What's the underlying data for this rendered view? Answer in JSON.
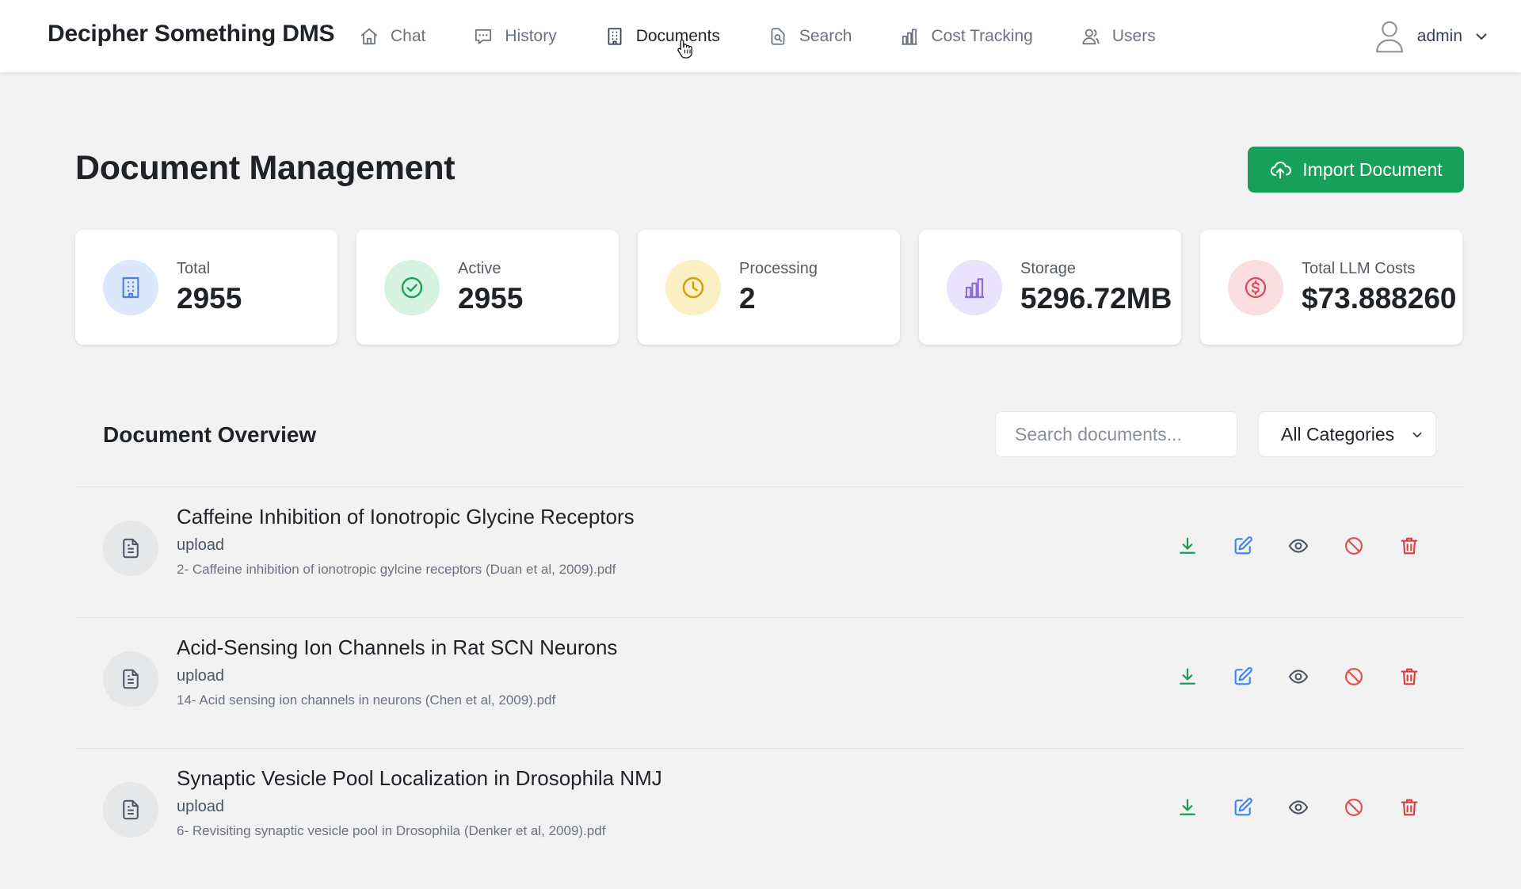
{
  "app": {
    "brand": "Decipher Something DMS"
  },
  "nav": {
    "items": [
      {
        "label": "Chat",
        "icon": "home-icon"
      },
      {
        "label": "History",
        "icon": "chat-bubble-icon"
      },
      {
        "label": "Documents",
        "icon": "building-icon",
        "active": true
      },
      {
        "label": "Search",
        "icon": "search-document-icon"
      },
      {
        "label": "Cost Tracking",
        "icon": "bar-chart-icon"
      },
      {
        "label": "Users",
        "icon": "users-icon"
      }
    ],
    "user": {
      "name": "admin"
    }
  },
  "page": {
    "title": "Document Management",
    "import_label": "Import Document"
  },
  "stats": [
    {
      "label": "Total",
      "value": "2955",
      "icon": "building-icon",
      "bg": "#dbe7fb",
      "fg": "#4f7fd6"
    },
    {
      "label": "Active",
      "value": "2955",
      "icon": "check-circle-icon",
      "bg": "#d6f3e2",
      "fg": "#22a05b"
    },
    {
      "label": "Processing",
      "value": "2",
      "icon": "clock-icon",
      "bg": "#fbefc4",
      "fg": "#d69a12"
    },
    {
      "label": "Storage",
      "value": "5296.72MB",
      "icon": "bar-chart-icon",
      "bg": "#e9e3fb",
      "fg": "#8c6cdb"
    },
    {
      "label": "Total LLM Costs",
      "value": "$73.888260",
      "icon": "dollar-circle-icon",
      "bg": "#fbdfe0",
      "fg": "#dc4a55"
    }
  ],
  "overview": {
    "title": "Document Overview",
    "search_placeholder": "Search documents...",
    "category_selected": "All Categories"
  },
  "documents": [
    {
      "title": "Caffeine Inhibition of Ionotropic Glycine Receptors",
      "source": "upload",
      "filename": "2- Caffeine inhibition of ionotropic gylcine receptors (Duan et al, 2009).pdf"
    },
    {
      "title": "Acid-Sensing Ion Channels in Rat SCN Neurons",
      "source": "upload",
      "filename": "14- Acid sensing ion channels in neurons (Chen et al, 2009).pdf"
    },
    {
      "title": "Synaptic Vesicle Pool Localization in Drosophila NMJ",
      "source": "upload",
      "filename": "6- Revisiting synaptic vesicle pool in Drosophila (Denker et al, 2009).pdf"
    }
  ],
  "colors": {
    "primary_green": "#16a05a",
    "download": "#1f9a55",
    "edit": "#3b82f6",
    "view": "#4b5563",
    "disable": "#e05252",
    "delete": "#dc3b3b"
  }
}
